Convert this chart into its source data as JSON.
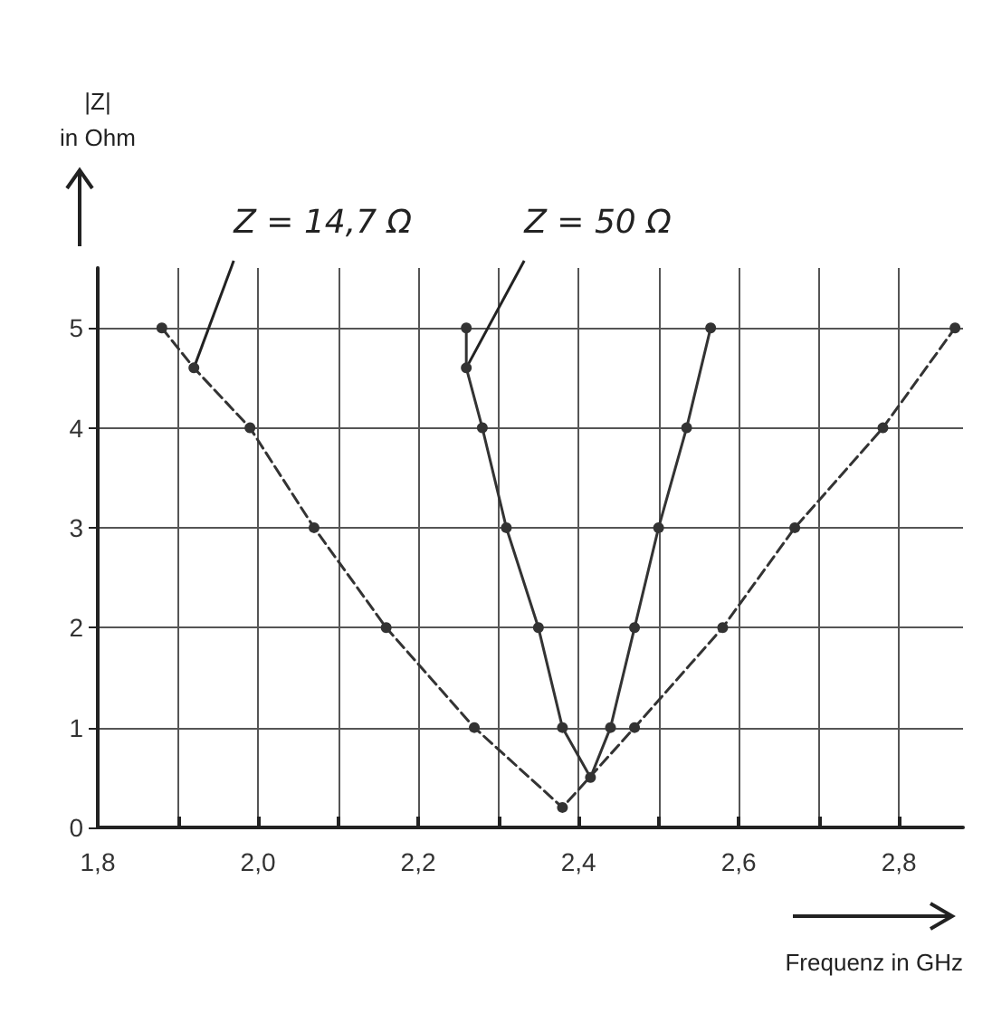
{
  "chart_data": {
    "type": "line",
    "xlabel": "Frequenz in GHz",
    "ylabel": "|Z|\nin Ohm",
    "xlim": [
      1.8,
      2.88
    ],
    "ylim": [
      0,
      5.6
    ],
    "xticks": [
      {
        "value": 1.8,
        "label": "1,8"
      },
      {
        "value": 1.9,
        "label": null
      },
      {
        "value": 2.0,
        "label": "2,0"
      },
      {
        "value": 2.1,
        "label": null
      },
      {
        "value": 2.2,
        "label": "2,2"
      },
      {
        "value": 2.3,
        "label": null
      },
      {
        "value": 2.4,
        "label": "2,4"
      },
      {
        "value": 2.5,
        "label": null
      },
      {
        "value": 2.6,
        "label": "2,6"
      },
      {
        "value": 2.7,
        "label": null
      },
      {
        "value": 2.8,
        "label": "2,8"
      }
    ],
    "yticks": [
      0,
      1,
      2,
      3,
      4,
      5
    ],
    "grid": true,
    "marker": "circle",
    "series": [
      {
        "color": "#333333",
        "line_style": "dashed",
        "x": [
          1.88,
          1.92,
          1.99,
          2.07,
          2.16,
          2.27,
          2.38,
          2.47,
          2.58,
          2.67,
          2.78,
          2.87
        ],
        "values": [
          5,
          4.6,
          4,
          3,
          2,
          1,
          0.2,
          1,
          2,
          3,
          4,
          5
        ]
      },
      {
        "color": "#333333",
        "line_style": "solid",
        "x": [
          2.26,
          2.26,
          2.28,
          2.31,
          2.35,
          2.38,
          2.415,
          2.44,
          2.47,
          2.5,
          2.535,
          2.565
        ],
        "values": [
          5,
          4.6,
          4,
          3,
          2,
          1,
          0.5,
          1,
          2,
          3,
          4,
          5
        ]
      }
    ],
    "annotations": [
      {
        "text": "Z = 14,7 Ω",
        "x": 1.92,
        "y": 4.6
      },
      {
        "text": "Z = 50 Ω",
        "x": 2.26,
        "y": 4.6
      }
    ]
  }
}
